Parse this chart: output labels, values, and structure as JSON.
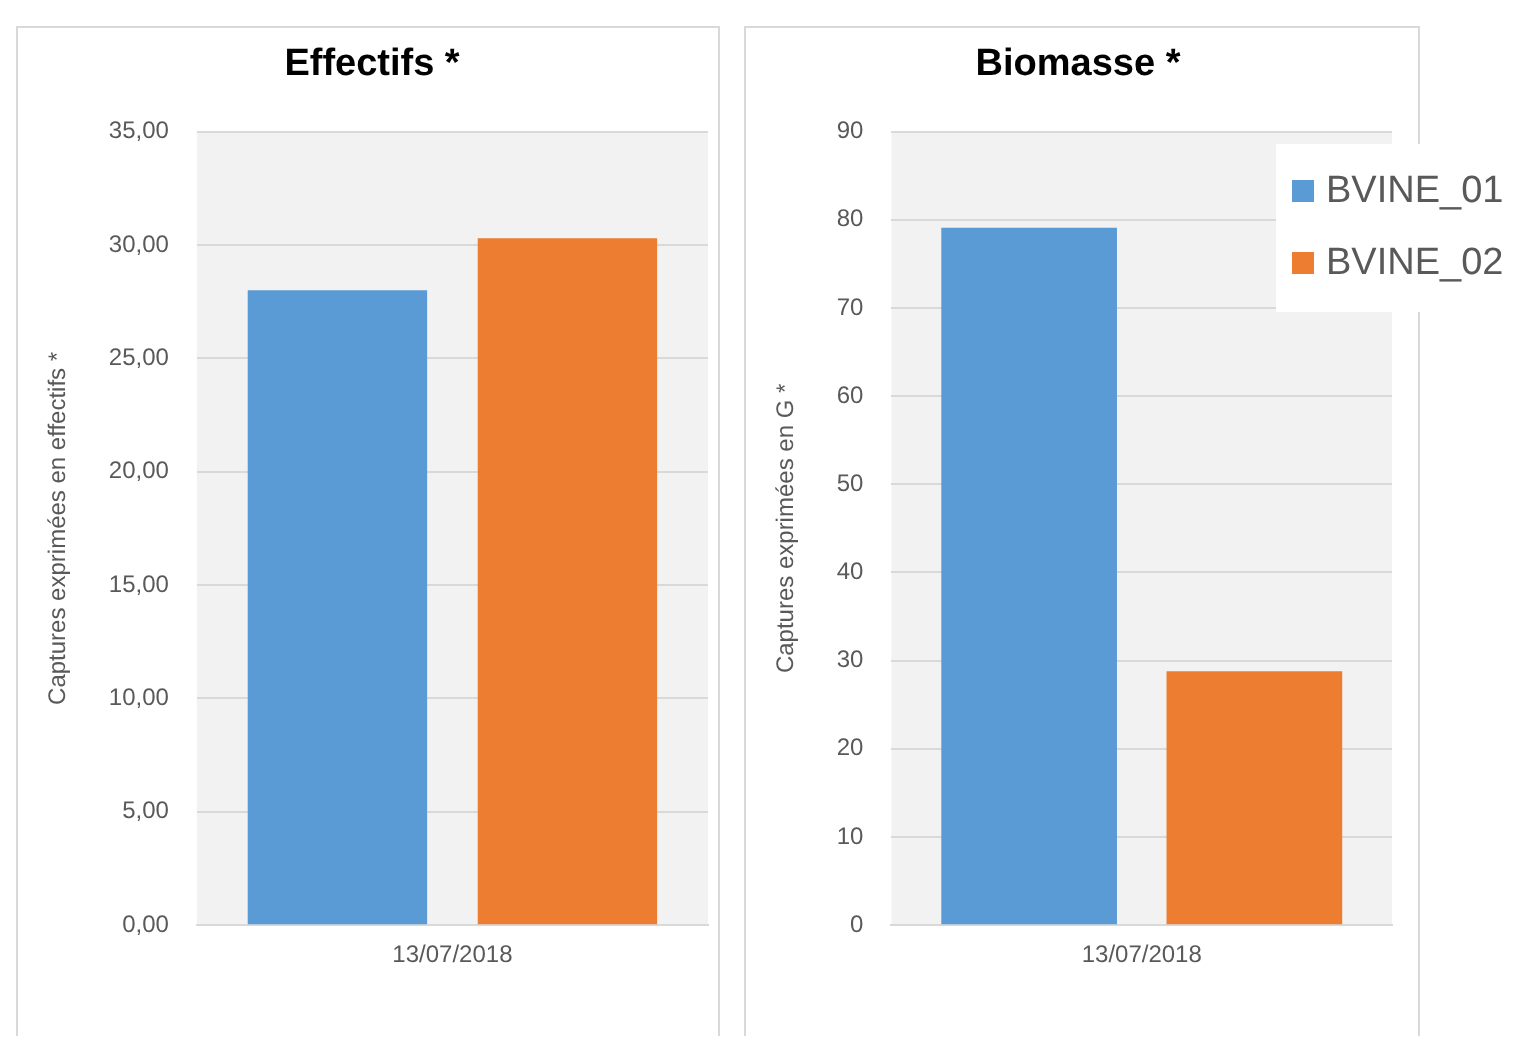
{
  "chart_data": [
    {
      "type": "bar",
      "title": "Effectifs *",
      "ylabel": "Captures exprimées en effectifs *",
      "categories": [
        "13/07/2018"
      ],
      "series": [
        {
          "color": "#5b9bd5",
          "values": [
            28.0
          ]
        },
        {
          "color": "#ed7d31",
          "values": [
            30.3
          ]
        }
      ],
      "ylim": [
        0,
        35
      ],
      "yticks": [
        {
          "value": 0,
          "label": "0,00"
        },
        {
          "value": 5,
          "label": "5,00"
        },
        {
          "value": 10,
          "label": "10,00"
        },
        {
          "value": 15,
          "label": "15,00"
        },
        {
          "value": 20,
          "label": "20,00"
        },
        {
          "value": 25,
          "label": "25,00"
        },
        {
          "value": 30,
          "label": "30,00"
        },
        {
          "value": 35,
          "label": "35,00"
        }
      ],
      "grid": "y"
    },
    {
      "type": "bar",
      "title": "Biomasse *",
      "ylabel": "Captures exprimées en G *",
      "categories": [
        "13/07/2018"
      ],
      "series": [
        {
          "name": "BVINE_01",
          "color": "#5b9bd5",
          "values": [
            79.1
          ]
        },
        {
          "name": "BVINE_02",
          "color": "#ed7d31",
          "values": [
            28.8
          ]
        }
      ],
      "ylim": [
        0,
        90
      ],
      "yticks": [
        0,
        10,
        20,
        30,
        40,
        50,
        60,
        70,
        80,
        90
      ],
      "grid": "y",
      "legend": "top right"
    }
  ]
}
